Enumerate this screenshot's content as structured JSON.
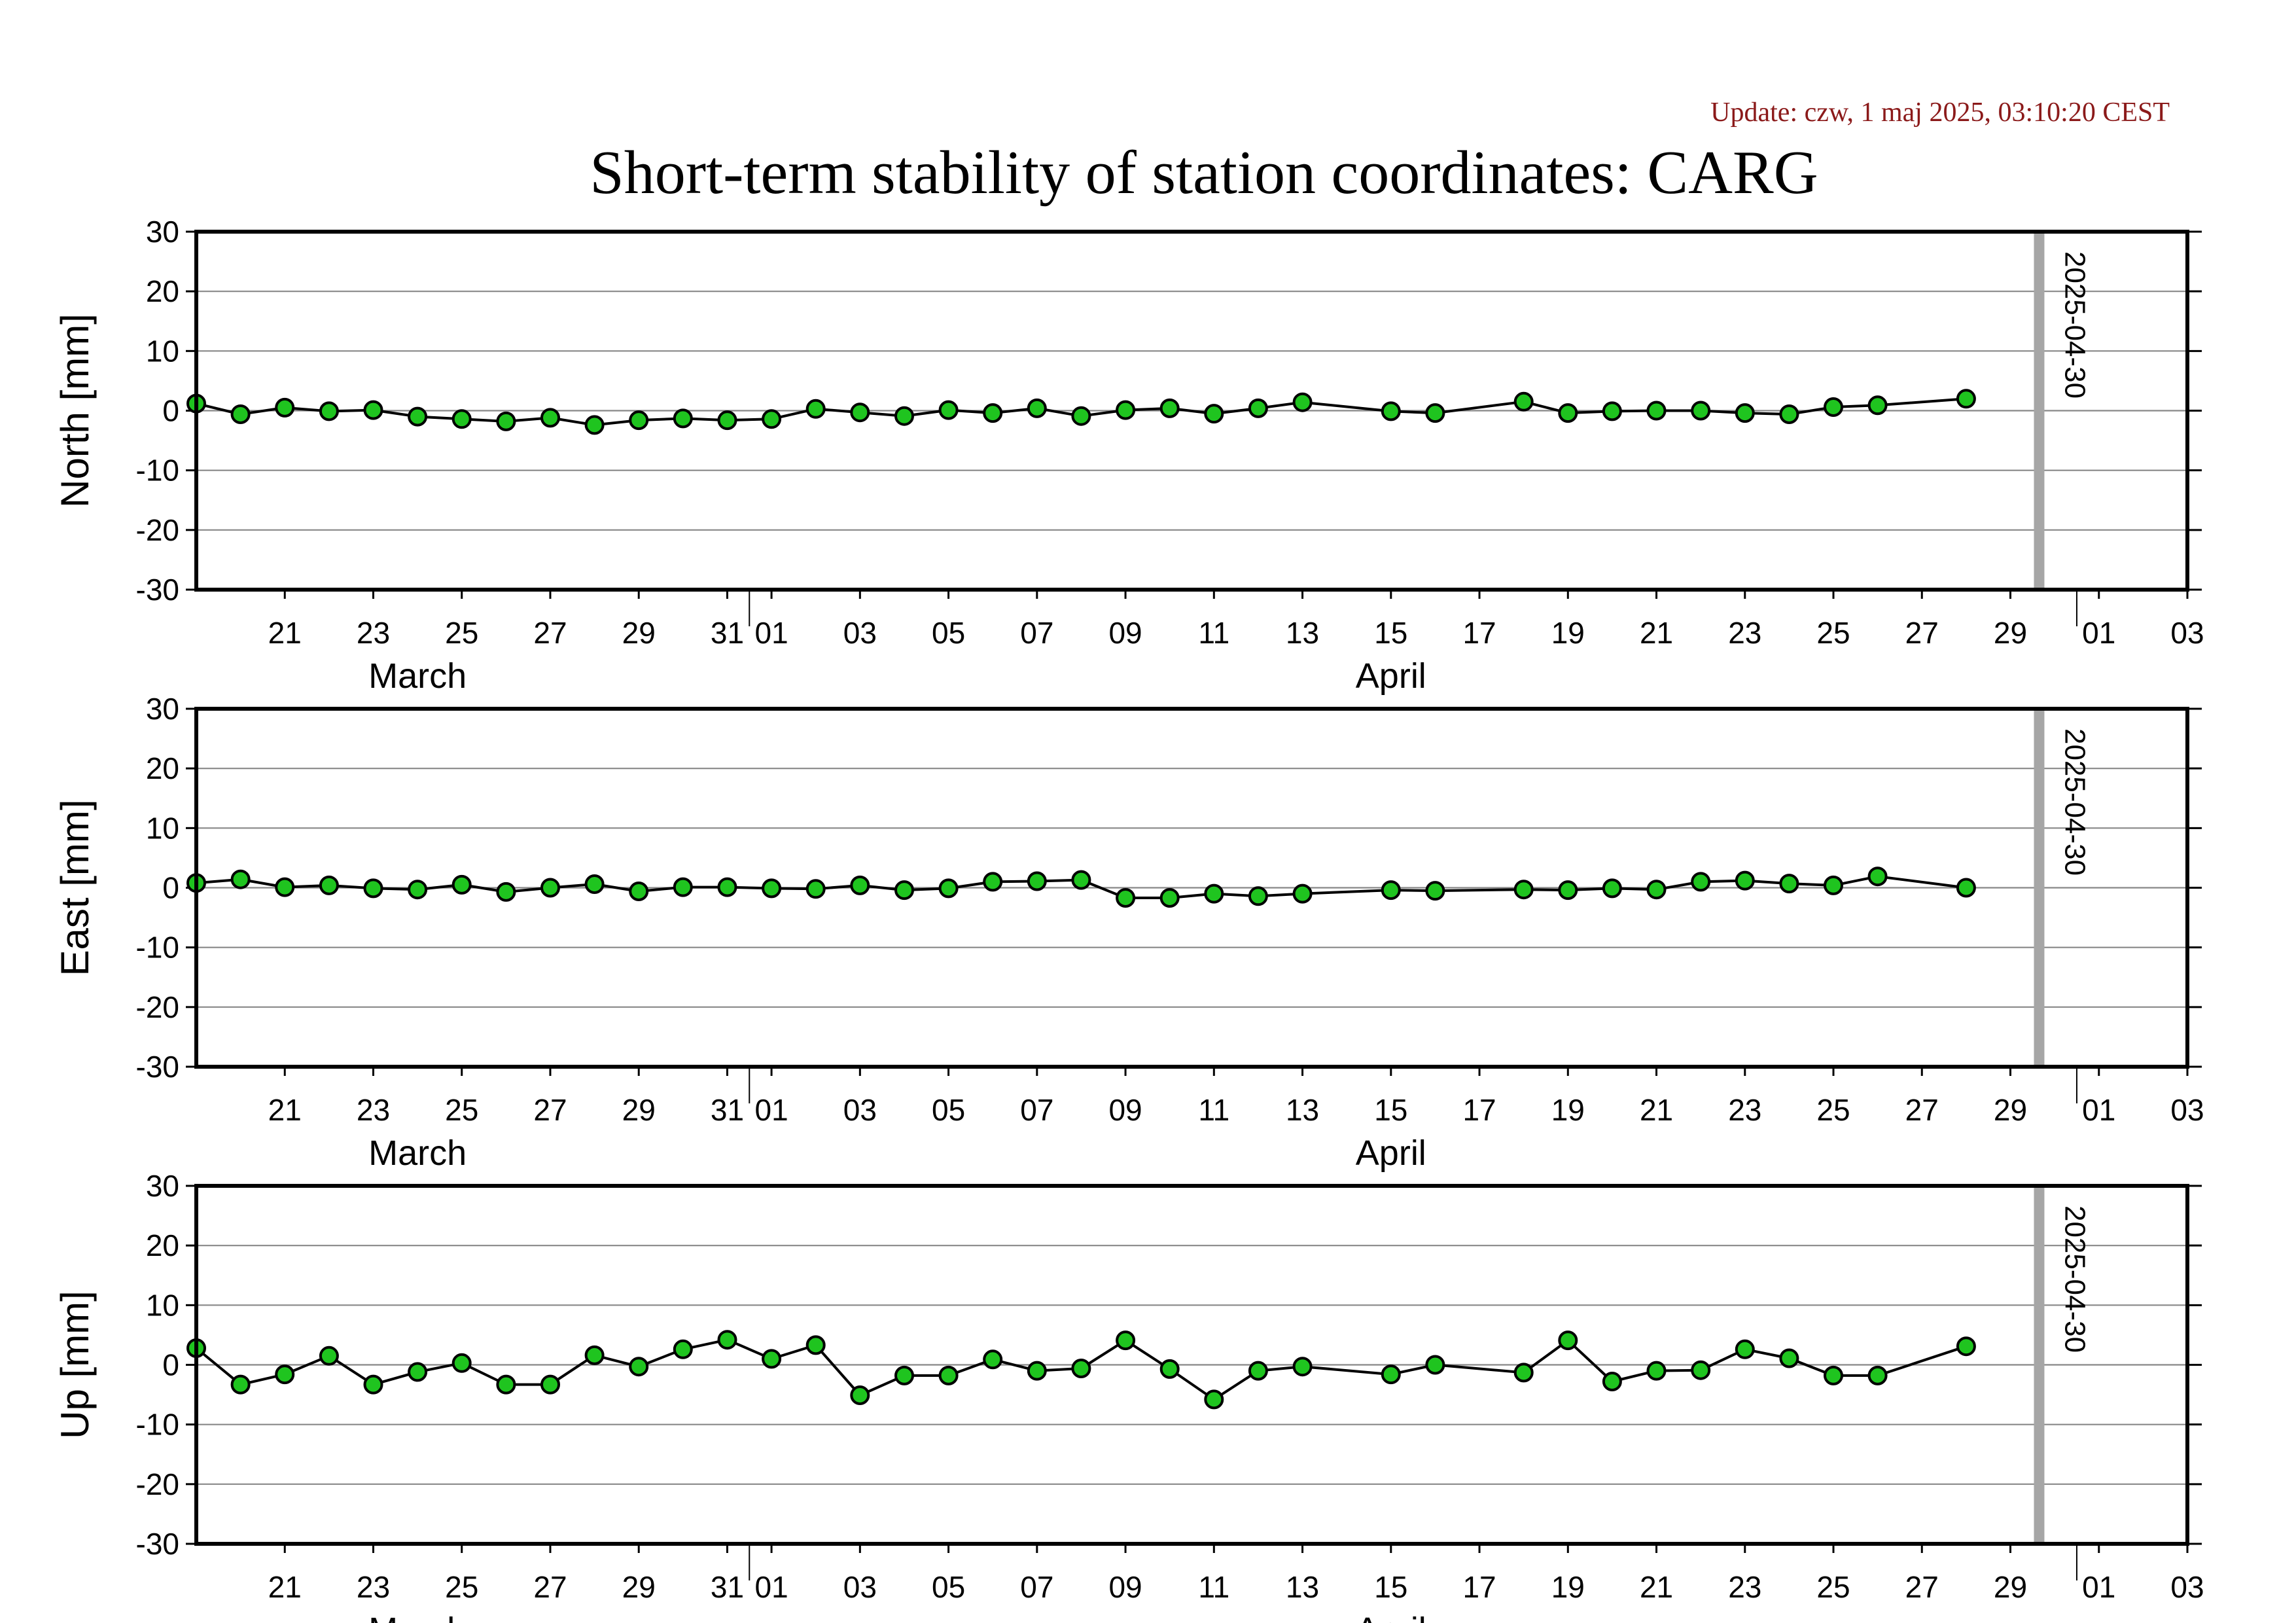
{
  "header": {
    "update_text": "Update: czw, 1 maj 2025, 03:10:20 CEST",
    "title": "Short-term stability of station coordinates: CARG"
  },
  "colors": {
    "marker_fill": "#1fc41f",
    "marker_stroke": "#000000",
    "series_line": "#000000",
    "gridline": "#888888",
    "date_marker": "#a6a6a6",
    "update_text": "#8b1a1a"
  },
  "chart_data": [
    {
      "type": "line",
      "ylabel": "North [mm]",
      "ylim": [
        -30,
        30
      ],
      "yticks": [
        30,
        20,
        10,
        0,
        -10,
        -20,
        -30
      ],
      "xlim": [
        "2025-03-19",
        "2025-05-03"
      ],
      "xtick_dates": [
        "2025-03-21",
        "2025-03-23",
        "2025-03-25",
        "2025-03-27",
        "2025-03-29",
        "2025-03-31",
        "2025-04-01",
        "2025-04-03",
        "2025-04-05",
        "2025-04-07",
        "2025-04-09",
        "2025-04-11",
        "2025-04-13",
        "2025-04-15",
        "2025-04-17",
        "2025-04-19",
        "2025-04-21",
        "2025-04-23",
        "2025-04-25",
        "2025-04-27",
        "2025-04-29",
        "2025-05-01",
        "2025-05-03"
      ],
      "xtick_labels": [
        "21",
        "23",
        "25",
        "27",
        "29",
        "31",
        "01",
        "03",
        "05",
        "07",
        "09",
        "11",
        "13",
        "15",
        "17",
        "19",
        "21",
        "23",
        "25",
        "27",
        "29",
        "01",
        "03"
      ],
      "months": [
        {
          "label": "March",
          "date": "2025-03-24"
        },
        {
          "label": "April",
          "date": "2025-04-15"
        }
      ],
      "marker_date": "2025-04-30",
      "marker_label": "2025-04-30",
      "grid": true,
      "series": [
        {
          "x": [
            "2025-03-19",
            "2025-03-20",
            "2025-03-21",
            "2025-03-22",
            "2025-03-23",
            "2025-03-24",
            "2025-03-25",
            "2025-03-26",
            "2025-03-27",
            "2025-03-28",
            "2025-03-29",
            "2025-03-30",
            "2025-03-31",
            "2025-04-01",
            "2025-04-02",
            "2025-04-03",
            "2025-04-04",
            "2025-04-05",
            "2025-04-06",
            "2025-04-07",
            "2025-04-08",
            "2025-04-09",
            "2025-04-10",
            "2025-04-11",
            "2025-04-12",
            "2025-04-13",
            "2025-04-15",
            "2025-04-16",
            "2025-04-18",
            "2025-04-19",
            "2025-04-20",
            "2025-04-21",
            "2025-04-22",
            "2025-04-23",
            "2025-04-24",
            "2025-04-25",
            "2025-04-26",
            "2025-04-28"
          ],
          "y": [
            1.2,
            -0.6,
            0.5,
            -0.1,
            0.1,
            -1.0,
            -1.4,
            -1.8,
            -1.2,
            -2.4,
            -1.6,
            -1.3,
            -1.6,
            -1.4,
            0.3,
            -0.3,
            -0.9,
            0.1,
            -0.4,
            0.4,
            -0.9,
            0.1,
            0.4,
            -0.5,
            0.4,
            1.4,
            -0.1,
            -0.4,
            1.5,
            -0.4,
            -0.1,
            0.0,
            0.0,
            -0.4,
            -0.6,
            0.6,
            0.9,
            2.0
          ]
        }
      ]
    },
    {
      "type": "line",
      "ylabel": "East [mm]",
      "ylim": [
        -30,
        30
      ],
      "yticks": [
        30,
        20,
        10,
        0,
        -10,
        -20,
        -30
      ],
      "xlim": [
        "2025-03-19",
        "2025-05-03"
      ],
      "xtick_dates": [
        "2025-03-21",
        "2025-03-23",
        "2025-03-25",
        "2025-03-27",
        "2025-03-29",
        "2025-03-31",
        "2025-04-01",
        "2025-04-03",
        "2025-04-05",
        "2025-04-07",
        "2025-04-09",
        "2025-04-11",
        "2025-04-13",
        "2025-04-15",
        "2025-04-17",
        "2025-04-19",
        "2025-04-21",
        "2025-04-23",
        "2025-04-25",
        "2025-04-27",
        "2025-04-29",
        "2025-05-01",
        "2025-05-03"
      ],
      "xtick_labels": [
        "21",
        "23",
        "25",
        "27",
        "29",
        "31",
        "01",
        "03",
        "05",
        "07",
        "09",
        "11",
        "13",
        "15",
        "17",
        "19",
        "21",
        "23",
        "25",
        "27",
        "29",
        "01",
        "03"
      ],
      "months": [
        {
          "label": "March",
          "date": "2025-03-24"
        },
        {
          "label": "April",
          "date": "2025-04-15"
        }
      ],
      "marker_date": "2025-04-30",
      "marker_label": "2025-04-30",
      "grid": true,
      "series": [
        {
          "x": [
            "2025-03-19",
            "2025-03-20",
            "2025-03-21",
            "2025-03-22",
            "2025-03-23",
            "2025-03-24",
            "2025-03-25",
            "2025-03-26",
            "2025-03-27",
            "2025-03-28",
            "2025-03-29",
            "2025-03-30",
            "2025-03-31",
            "2025-04-01",
            "2025-04-02",
            "2025-04-03",
            "2025-04-04",
            "2025-04-05",
            "2025-04-06",
            "2025-04-07",
            "2025-04-08",
            "2025-04-09",
            "2025-04-10",
            "2025-04-11",
            "2025-04-12",
            "2025-04-13",
            "2025-04-15",
            "2025-04-16",
            "2025-04-18",
            "2025-04-19",
            "2025-04-20",
            "2025-04-21",
            "2025-04-22",
            "2025-04-23",
            "2025-04-24",
            "2025-04-25",
            "2025-04-26",
            "2025-04-28"
          ],
          "y": [
            0.8,
            1.4,
            0.1,
            0.4,
            -0.1,
            -0.3,
            0.5,
            -0.7,
            0.0,
            0.6,
            -0.6,
            0.1,
            0.1,
            -0.1,
            -0.2,
            0.4,
            -0.4,
            -0.1,
            1.0,
            1.1,
            1.3,
            -1.7,
            -1.7,
            -1.0,
            -1.4,
            -1.0,
            -0.4,
            -0.5,
            -0.3,
            -0.4,
            -0.1,
            -0.3,
            1.0,
            1.2,
            0.7,
            0.4,
            1.9,
            0.0
          ]
        }
      ]
    },
    {
      "type": "line",
      "ylabel": "Up [mm]",
      "ylim": [
        -30,
        30
      ],
      "yticks": [
        30,
        20,
        10,
        0,
        -10,
        -20,
        -30
      ],
      "xlim": [
        "2025-03-19",
        "2025-05-03"
      ],
      "xtick_dates": [
        "2025-03-21",
        "2025-03-23",
        "2025-03-25",
        "2025-03-27",
        "2025-03-29",
        "2025-03-31",
        "2025-04-01",
        "2025-04-03",
        "2025-04-05",
        "2025-04-07",
        "2025-04-09",
        "2025-04-11",
        "2025-04-13",
        "2025-04-15",
        "2025-04-17",
        "2025-04-19",
        "2025-04-21",
        "2025-04-23",
        "2025-04-25",
        "2025-04-27",
        "2025-04-29",
        "2025-05-01",
        "2025-05-03"
      ],
      "xtick_labels": [
        "21",
        "23",
        "25",
        "27",
        "29",
        "31",
        "01",
        "03",
        "05",
        "07",
        "09",
        "11",
        "13",
        "15",
        "17",
        "19",
        "21",
        "23",
        "25",
        "27",
        "29",
        "01",
        "03"
      ],
      "months": [
        {
          "label": "March",
          "date": "2025-03-24"
        },
        {
          "label": "April",
          "date": "2025-04-15"
        }
      ],
      "marker_date": "2025-04-30",
      "marker_label": "2025-04-30",
      "grid": true,
      "series": [
        {
          "x": [
            "2025-03-19",
            "2025-03-20",
            "2025-03-21",
            "2025-03-22",
            "2025-03-23",
            "2025-03-24",
            "2025-03-25",
            "2025-03-26",
            "2025-03-27",
            "2025-03-28",
            "2025-03-29",
            "2025-03-30",
            "2025-03-31",
            "2025-04-01",
            "2025-04-02",
            "2025-04-03",
            "2025-04-04",
            "2025-04-05",
            "2025-04-06",
            "2025-04-07",
            "2025-04-08",
            "2025-04-09",
            "2025-04-10",
            "2025-04-11",
            "2025-04-12",
            "2025-04-13",
            "2025-04-15",
            "2025-04-16",
            "2025-04-18",
            "2025-04-19",
            "2025-04-20",
            "2025-04-21",
            "2025-04-22",
            "2025-04-23",
            "2025-04-24",
            "2025-04-25",
            "2025-04-26",
            "2025-04-28"
          ],
          "y": [
            2.8,
            -3.3,
            -1.6,
            1.5,
            -3.3,
            -1.2,
            0.3,
            -3.3,
            -3.3,
            1.6,
            -0.3,
            2.6,
            4.2,
            1.0,
            3.3,
            -5.1,
            -1.8,
            -1.8,
            0.9,
            -1.0,
            -0.6,
            4.1,
            -0.7,
            -5.8,
            -1.0,
            -0.3,
            -1.6,
            0.0,
            -1.3,
            4.1,
            -2.8,
            -1.0,
            -0.9,
            2.6,
            1.1,
            -1.8,
            -1.8,
            3.1
          ]
        }
      ]
    }
  ]
}
